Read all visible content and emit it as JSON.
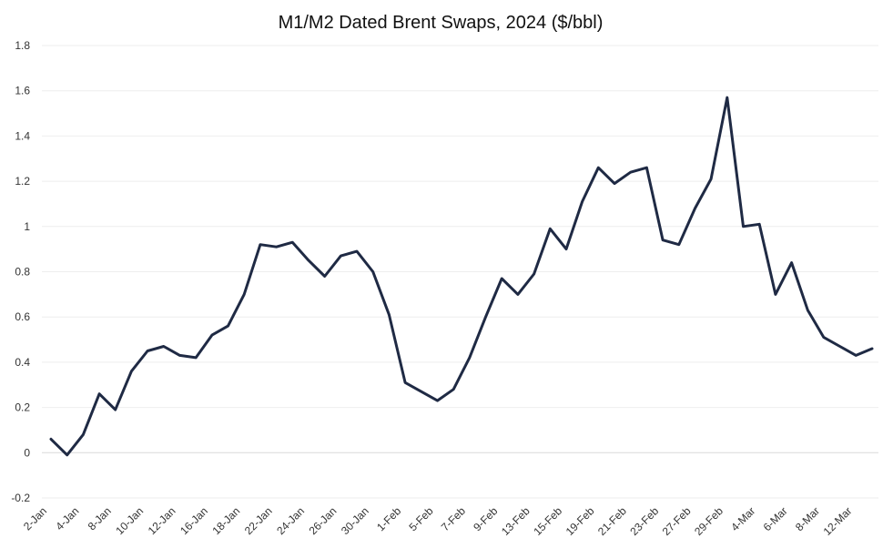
{
  "chart_data": {
    "type": "line",
    "title": "M1/M2 Dated Brent Swaps, 2024 ($/bbl)",
    "xlabel": "",
    "ylabel": "",
    "ylim": [
      -0.2,
      1.8
    ],
    "yticks": [
      -0.2,
      0,
      0.2,
      0.4,
      0.6,
      0.8,
      1,
      1.2,
      1.4,
      1.6,
      1.8
    ],
    "ytick_labels": [
      "-0.2",
      "0",
      "0.2",
      "0.4",
      "0.6",
      "0.8",
      "1",
      "1.2",
      "1.4",
      "1.6",
      "1.8"
    ],
    "x_tick_labels": [
      "2-Jan",
      "4-Jan",
      "8-Jan",
      "10-Jan",
      "12-Jan",
      "16-Jan",
      "18-Jan",
      "22-Jan",
      "24-Jan",
      "26-Jan",
      "30-Jan",
      "1-Feb",
      "5-Feb",
      "7-Feb",
      "9-Feb",
      "13-Feb",
      "15-Feb",
      "19-Feb",
      "21-Feb",
      "23-Feb",
      "27-Feb",
      "29-Feb",
      "4-Mar",
      "6-Mar",
      "8-Mar",
      "12-Mar"
    ],
    "grid": true,
    "legend": "none",
    "colors": {
      "series": "#1f2a44"
    },
    "series": [
      {
        "values": [
          0.06,
          -0.01,
          0.08,
          0.26,
          0.19,
          0.36,
          0.45,
          0.47,
          0.43,
          0.42,
          0.52,
          0.56,
          0.7,
          0.92,
          0.91,
          0.93,
          0.85,
          0.78,
          0.87,
          0.89,
          0.8,
          0.61,
          0.31,
          0.27,
          0.23,
          0.28,
          0.42,
          0.6,
          0.77,
          0.7,
          0.79,
          0.99,
          0.9,
          1.11,
          1.26,
          1.19,
          1.24,
          1.26,
          0.94,
          0.92,
          1.08,
          1.21,
          1.57,
          1.0,
          1.01,
          0.7,
          0.84,
          0.63,
          0.51,
          0.47,
          0.43,
          0.46
        ]
      }
    ]
  }
}
